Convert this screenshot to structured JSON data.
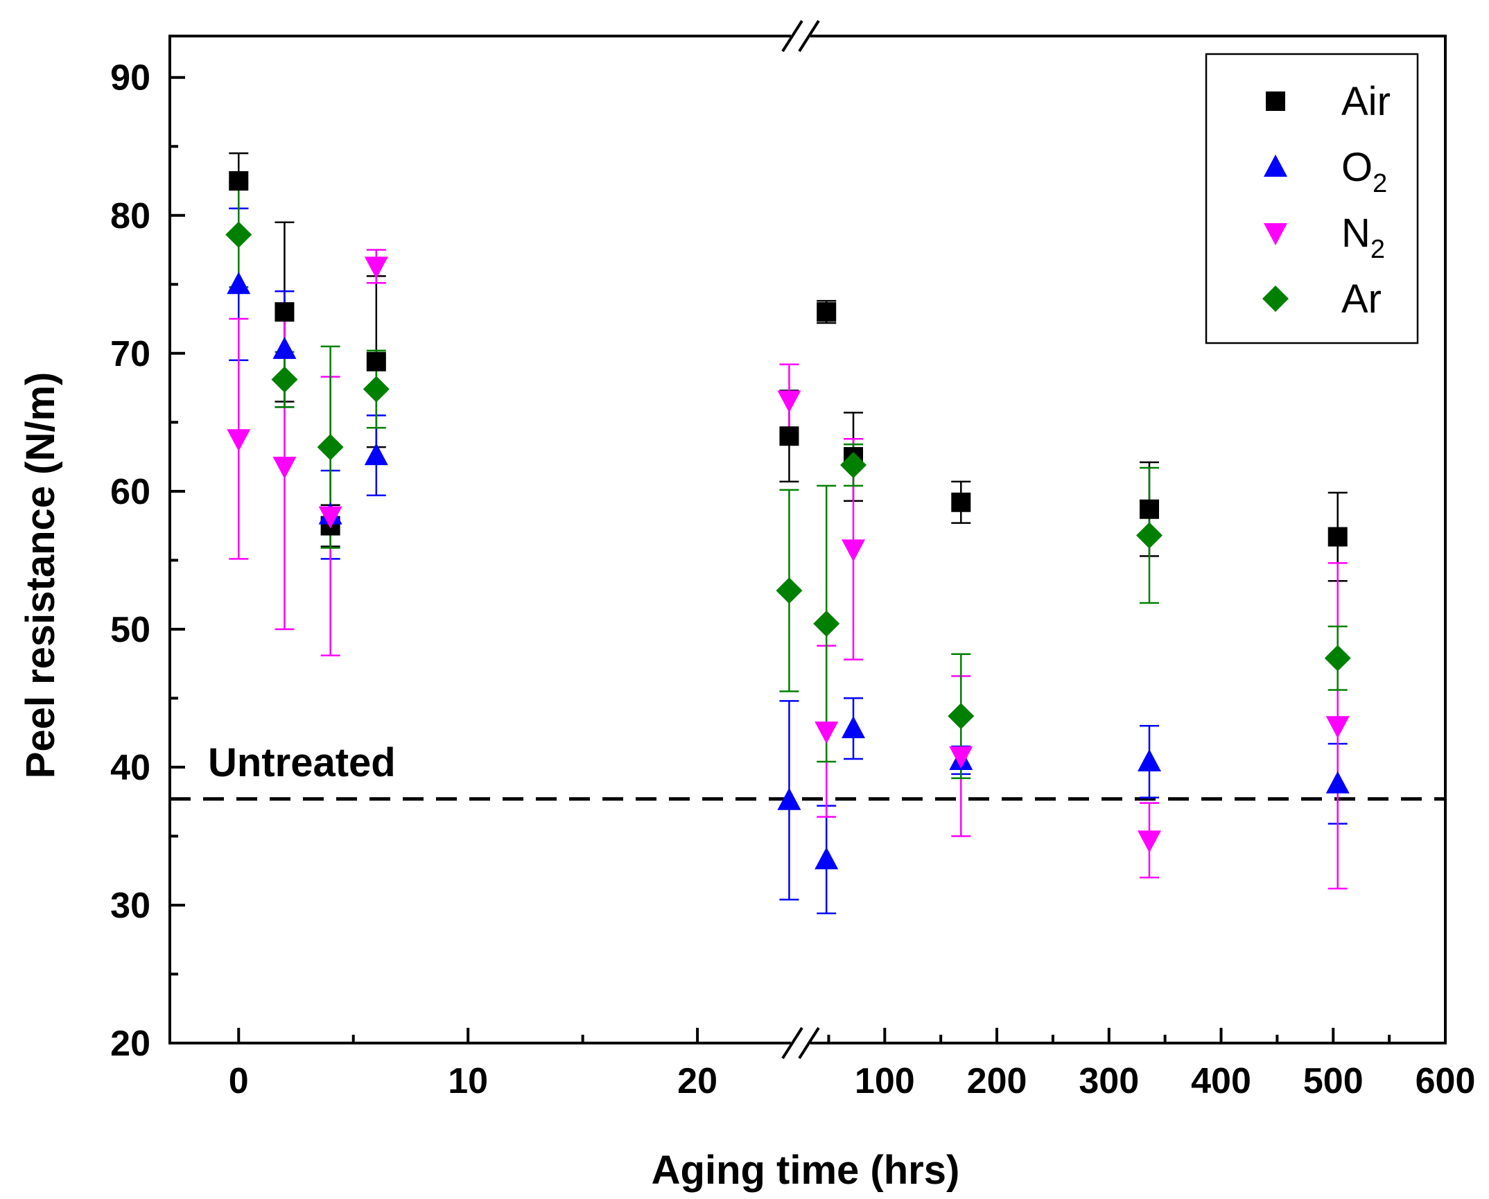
{
  "chart_data": {
    "type": "scatter",
    "title": "",
    "xlabel": "Aging time (hrs)",
    "ylabel": "Peel resistance (N/m)",
    "ylim": [
      20,
      93
    ],
    "y_ticks": [
      20,
      30,
      40,
      50,
      60,
      70,
      80,
      90
    ],
    "x_axis_broken": true,
    "x_segment_1": {
      "range": [
        -3,
        24.5
      ],
      "ticks": [
        0,
        10,
        20
      ]
    },
    "x_segment_2": {
      "range": [
        25,
        600
      ],
      "ticks": [
        100,
        200,
        300,
        400,
        500,
        600
      ]
    },
    "reference_line": {
      "label": "Untreated",
      "y": 37.7,
      "style": "dashed"
    },
    "legend_position": "top-right",
    "series": [
      {
        "name": "Air",
        "symbol": "Air",
        "subscript": "",
        "marker": "square",
        "color": "#000000",
        "points": [
          {
            "x": 0,
            "y": 82.5,
            "err": 2.0
          },
          {
            "x": 2,
            "y": 73.0,
            "err": 6.5
          },
          {
            "x": 4,
            "y": 57.5,
            "err": 1.5
          },
          {
            "x": 6,
            "y": 69.4,
            "err": 6.2
          },
          {
            "x": 24,
            "y": 64.0,
            "err": 3.3
          },
          {
            "x": 48,
            "y": 73.0,
            "err": 0.8
          },
          {
            "x": 72,
            "y": 62.5,
            "err": 3.2
          },
          {
            "x": 168,
            "y": 59.2,
            "err": 1.5
          },
          {
            "x": 336,
            "y": 58.7,
            "err": 3.4
          },
          {
            "x": 504,
            "y": 56.7,
            "err": 3.2
          }
        ]
      },
      {
        "name": "O2",
        "symbol": "O",
        "subscript": "2",
        "marker": "triangle-up",
        "color": "#0000ff",
        "points": [
          {
            "x": 0,
            "y": 75.0,
            "err": 5.5
          },
          {
            "x": 2,
            "y": 70.3,
            "err": 4.2
          },
          {
            "x": 4,
            "y": 58.3,
            "err": 3.2
          },
          {
            "x": 6,
            "y": 62.6,
            "err": 2.9
          },
          {
            "x": 24,
            "y": 37.6,
            "err": 7.2
          },
          {
            "x": 48,
            "y": 33.3,
            "err": 3.9
          },
          {
            "x": 72,
            "y": 42.8,
            "err": 2.2
          },
          {
            "x": 168,
            "y": 40.5,
            "err": 1.0
          },
          {
            "x": 336,
            "y": 40.4,
            "err": 2.6
          },
          {
            "x": 504,
            "y": 38.8,
            "err": 2.9
          }
        ]
      },
      {
        "name": "N2",
        "symbol": "N",
        "subscript": "2",
        "marker": "triangle-down",
        "color": "#ff00ff",
        "points": [
          {
            "x": 0,
            "y": 63.8,
            "err": 8.7
          },
          {
            "x": 2,
            "y": 61.8,
            "err": 11.8
          },
          {
            "x": 4,
            "y": 58.2,
            "err": 10.1
          },
          {
            "x": 6,
            "y": 76.3,
            "err": 1.2
          },
          {
            "x": 24,
            "y": 66.6,
            "err": 2.6
          },
          {
            "x": 48,
            "y": 42.6,
            "err": 6.2
          },
          {
            "x": 72,
            "y": 55.8,
            "err": 8.0
          },
          {
            "x": 168,
            "y": 40.8,
            "err": 5.8
          },
          {
            "x": 336,
            "y": 34.7,
            "err": 2.7
          },
          {
            "x": 504,
            "y": 43.0,
            "err": 11.8
          }
        ]
      },
      {
        "name": "Ar",
        "symbol": "Ar",
        "subscript": "",
        "marker": "diamond",
        "color": "#008000",
        "points": [
          {
            "x": 0,
            "y": 78.6,
            "err": 3.8
          },
          {
            "x": 2,
            "y": 68.1,
            "err": 2.0
          },
          {
            "x": 4,
            "y": 63.2,
            "err": 7.3
          },
          {
            "x": 6,
            "y": 67.4,
            "err": 2.8
          },
          {
            "x": 24,
            "y": 52.8,
            "err": 7.3
          },
          {
            "x": 48,
            "y": 50.4,
            "err": 10.0
          },
          {
            "x": 72,
            "y": 61.9,
            "err": 1.5
          },
          {
            "x": 168,
            "y": 43.7,
            "err": 4.5
          },
          {
            "x": 336,
            "y": 56.8,
            "err": 4.9
          },
          {
            "x": 504,
            "y": 47.9,
            "err": 2.3
          }
        ]
      }
    ]
  }
}
